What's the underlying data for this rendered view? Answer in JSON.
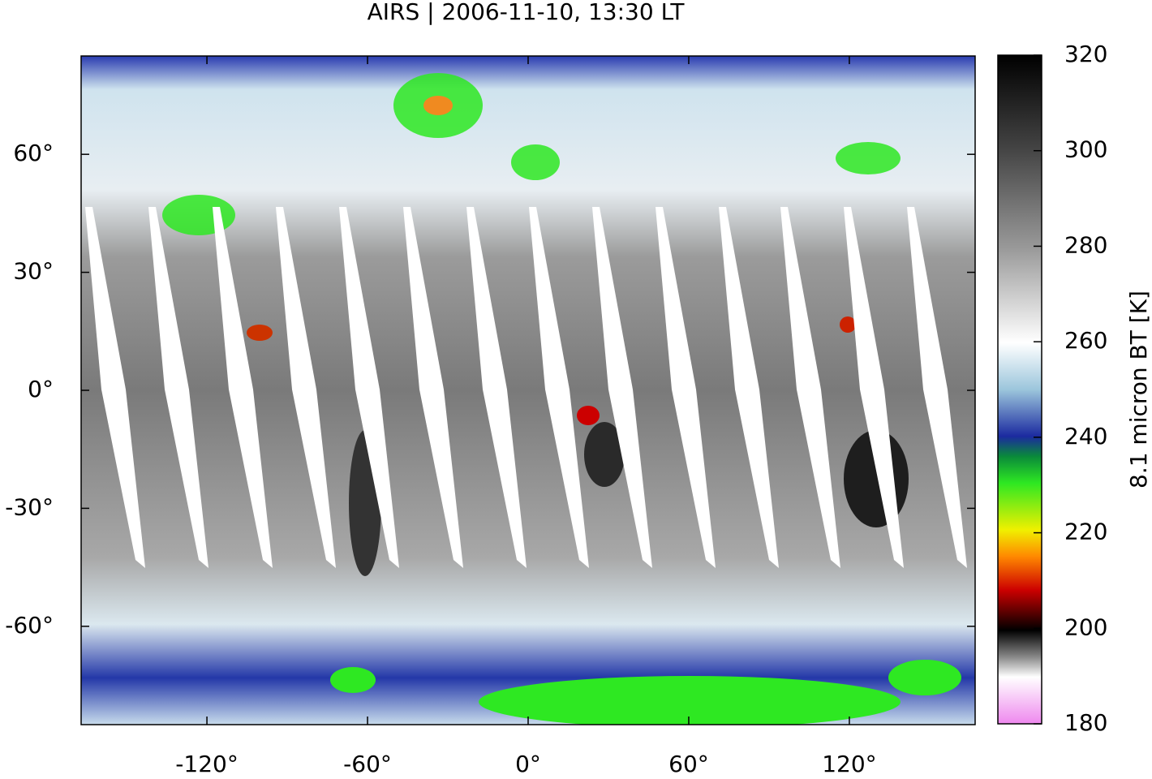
{
  "chart_data": {
    "type": "map",
    "title": "AIRS | 2006-11-10, 13:30 LT",
    "xlim": [
      -167,
      167
    ],
    "ylim": [
      -85,
      85
    ],
    "xticks": [
      {
        "value": -120,
        "label": "-120°"
      },
      {
        "value": -60,
        "label": "-60°"
      },
      {
        "value": 0,
        "label": "0°"
      },
      {
        "value": 60,
        "label": "60°"
      },
      {
        "value": 120,
        "label": "120°"
      }
    ],
    "yticks": [
      {
        "value": 60,
        "label": "60°"
      },
      {
        "value": 30,
        "label": "30°"
      },
      {
        "value": 0,
        "label": "0°"
      },
      {
        "value": -30,
        "label": "-30°"
      },
      {
        "value": -60,
        "label": "-60°"
      }
    ],
    "colorbar": {
      "label": "8.1 micron BT [K]",
      "clim": [
        180,
        320
      ],
      "ticks": [
        180,
        200,
        220,
        240,
        260,
        280,
        300,
        320
      ]
    }
  }
}
